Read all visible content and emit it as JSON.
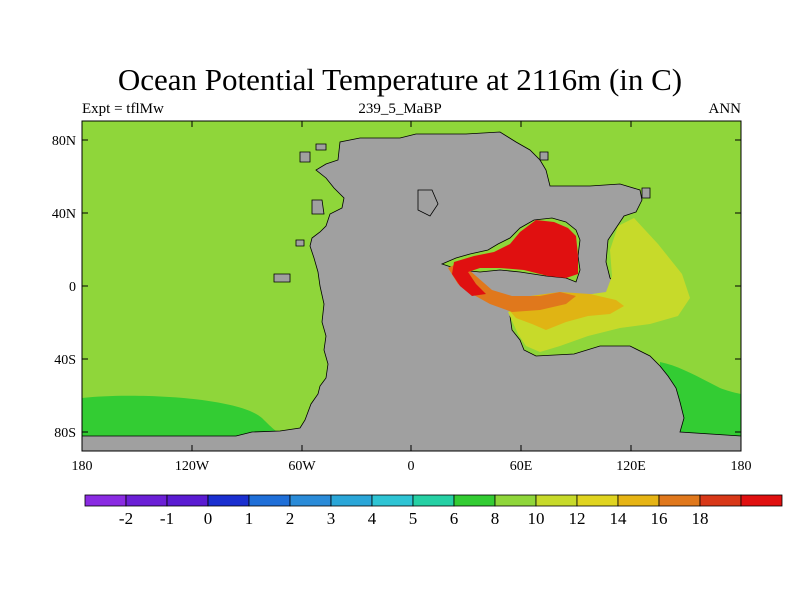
{
  "title": "Ocean Potential Temperature at 2116m (in C)",
  "subtitle_left": "Expt = tflMw",
  "subtitle_center": "239_5_MaBP",
  "subtitle_right": "ANN",
  "x_ticks": [
    "180",
    "120W",
    "60W",
    "0",
    "60E",
    "120E",
    "180"
  ],
  "y_ticks": [
    "80N",
    "40N",
    "0",
    "40S",
    "80S"
  ],
  "colorbar": {
    "colors": [
      "#8a2be2",
      "#6b1fd6",
      "#5a1bd2",
      "#1a2fd0",
      "#1f6fd8",
      "#2a8bd8",
      "#2aa6d8",
      "#2ec4d4",
      "#26d0a4",
      "#33cc33",
      "#8fd63a",
      "#c7da2a",
      "#e0d420",
      "#e6b414",
      "#e0781c",
      "#d83818",
      "#e01010"
    ],
    "labels": [
      "-2",
      "-1",
      "0",
      "1",
      "2",
      "3",
      "4",
      "5",
      "6",
      "8",
      "10",
      "12",
      "14",
      "16",
      "18"
    ]
  },
  "colors": {
    "land": "#a0a0a0",
    "ocean_main": "#8fd63a",
    "ocean_cold": "#33cc33",
    "warm_yellow": "#c7da2a",
    "warm_gold": "#e0b414",
    "warm_orange": "#e0781c",
    "hot_red": "#e01010"
  }
}
